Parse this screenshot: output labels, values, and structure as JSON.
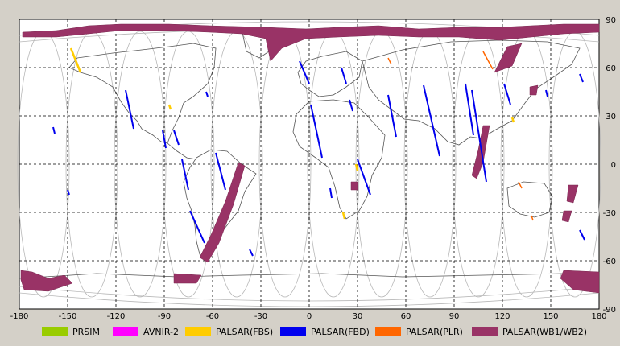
{
  "map": {
    "x_ticks": [
      "-180",
      "-150",
      "-120",
      "-90",
      "-60",
      "-30",
      "0",
      "30",
      "60",
      "90",
      "120",
      "150",
      "180"
    ],
    "y_ticks": [
      "90",
      "60",
      "30",
      "0",
      "-30",
      "-60",
      "-90"
    ]
  },
  "legend": [
    {
      "label": "PRSIM",
      "color": "#99cc00"
    },
    {
      "label": "AVNIR-2",
      "color": "#ff00ff"
    },
    {
      "label": "PALSAR(FBS)",
      "color": "#ffcc00"
    },
    {
      "label": "PALSAR(FBD)",
      "color": "#0000ee"
    },
    {
      "label": "PALSAR(PLR)",
      "color": "#ff6600"
    },
    {
      "label": "PALSAR(WB1/WB2)",
      "color": "#993366"
    }
  ]
}
